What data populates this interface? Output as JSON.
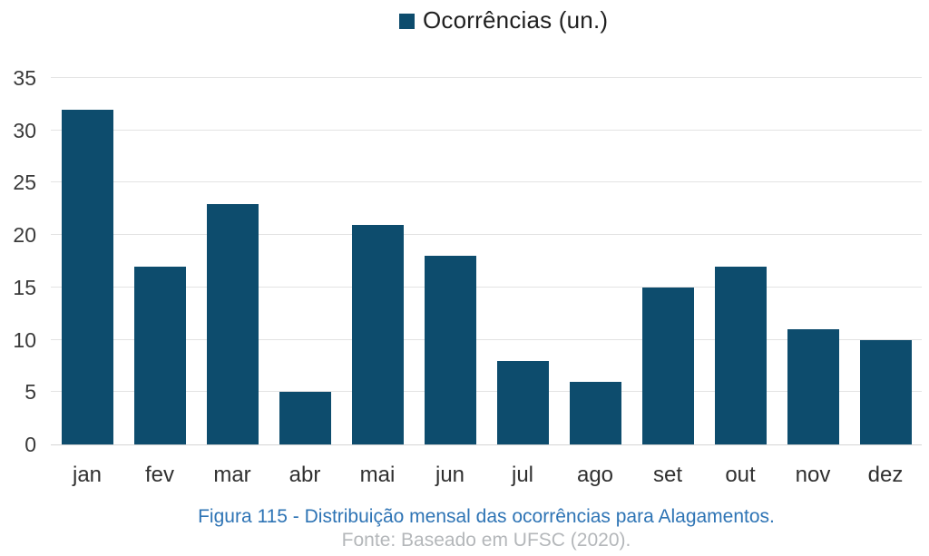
{
  "legend": {
    "label": "Ocorrências (un.)"
  },
  "caption": {
    "title": "Figura 115 - Distribuição mensal das ocorrências para Alagamentos.",
    "source": "Fonte: Baseado em UFSC (2020)."
  },
  "colors": {
    "bar": "#0d4c6d",
    "legend_text": "#1f1f1f",
    "tick_label": "#3a3a3a",
    "gridline": "#e3e3e3",
    "axis_line": "#d5d5d5",
    "caption_title": "#2e74b5",
    "caption_source": "#b4b7ba"
  },
  "chart_data": {
    "type": "bar",
    "title": "Ocorrências (un.)",
    "categories": [
      "jan",
      "fev",
      "mar",
      "abr",
      "mai",
      "jun",
      "jul",
      "ago",
      "set",
      "out",
      "nov",
      "dez"
    ],
    "values": [
      32,
      17,
      23,
      5,
      21,
      18,
      8,
      6,
      15,
      17,
      11,
      10
    ],
    "xlabel": "",
    "ylabel": "",
    "ylim": [
      0,
      35
    ],
    "ytick_step": 5,
    "yticks": [
      0,
      5,
      10,
      15,
      20,
      25,
      30,
      35
    ],
    "grid": true,
    "legend_position": "top-center",
    "legend_entries": [
      "Ocorrências (un.)"
    ]
  }
}
